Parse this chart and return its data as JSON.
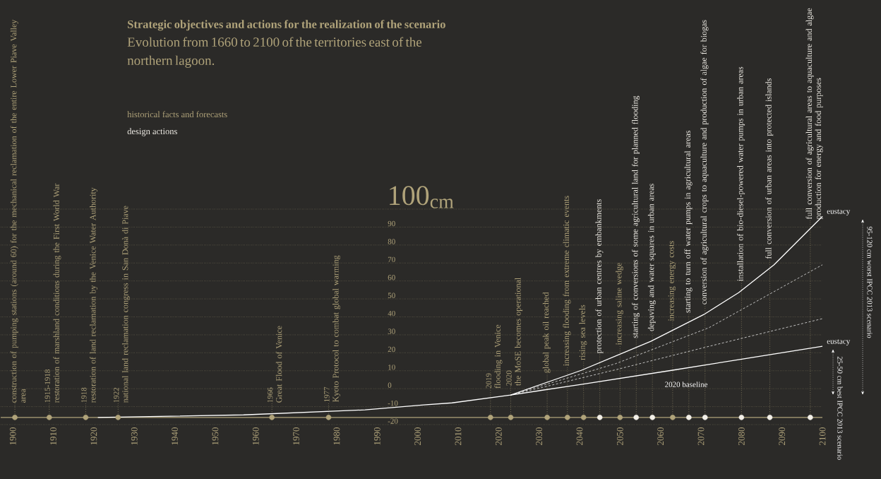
{
  "chart_data": {
    "type": "line",
    "title": "Strategic objectives and actions for the realization of the scenario",
    "subtitle": "Evolution from 1660 to 2100 of the territories east of the northern lagoon.",
    "ylabel": "100$_{cm}$",
    "xlim": [
      1897,
      2100
    ],
    "ylim": [
      -20,
      100
    ],
    "xticks": [
      1900,
      1910,
      1920,
      1930,
      1940,
      1950,
      1960,
      1970,
      1980,
      1990,
      2000,
      2010,
      2020,
      2030,
      2040,
      2050,
      2060,
      2070,
      2080,
      2090,
      2100
    ],
    "yticks": [
      -20,
      -10,
      0,
      10,
      20,
      30,
      40,
      50,
      60,
      70,
      80,
      90,
      {
        "value": 100,
        "label": null
      }
    ],
    "grid": "y",
    "legend": "top left",
    "series": [
      {
        "line_style": "solid",
        "color": "#ffffff",
        "x": [
          1921,
          1957,
          1987,
          2001.5,
          2008.5,
          2023,
          2040.4,
          2057.6,
          2070.7,
          2079.3,
          2088,
          2100
        ],
        "values": [
          -16,
          -14.6,
          -11.8,
          -9,
          -7.9,
          -3.5,
          10.2,
          26.4,
          41.3,
          53.5,
          68.9,
          96
        ]
      },
      {
        "line_style": "dashed",
        "color": "#ffffff",
        "x": [
          2023,
          2049,
          2072,
          2100
        ],
        "values": [
          -3.5,
          14,
          34,
          69
        ]
      },
      {
        "line_style": "dashed",
        "color": "#ffffff",
        "x": [
          2023,
          2049,
          2072,
          2100
        ],
        "values": [
          -3.5,
          10.6,
          23.6,
          39
        ]
      },
      {
        "line_style": "solid",
        "color": "#ffffff",
        "x": [
          2023,
          2040.4,
          2062.7,
          2100
        ],
        "values": [
          -3.5,
          2.4,
          10.2,
          23.6
        ]
      },
      {
        "type": "scatter",
        "color": "#b0a37a",
        "name": "historical facts and forecasts",
        "x": [
          1900.5,
          1909,
          1918,
          1926,
          1964,
          1978,
          2018,
          2023,
          2032,
          2037,
          2041,
          2050,
          2063
        ],
        "values": [
          -16,
          -16,
          -16,
          -16,
          -16,
          -16,
          -16,
          -16,
          -16,
          -16,
          -16,
          -16,
          -16
        ]
      },
      {
        "type": "scatter",
        "color": "#f2efe8",
        "name": "design actions",
        "x": [
          2045,
          2054,
          2058,
          2067,
          2071,
          2080,
          2087,
          2097
        ],
        "values": [
          -16,
          -16,
          -16,
          -16,
          -16,
          -16,
          -16,
          -16
        ]
      }
    ],
    "ref_lines": [
      {
        "axis": "y",
        "value": -16,
        "color": "#b0a37a",
        "line_style": "solid"
      }
    ],
    "annotations": [
      {
        "text": "construction of pumping stations (around 60) for the mechanical reclamation of the entire Lower Piave Valley area",
        "x": 1900.5,
        "y": -16
      },
      {
        "text": "1915-1918",
        "x": 1909,
        "y": -16
      },
      {
        "text": "restoration of marshland conditions during the First World War",
        "x": 1909,
        "y": -16
      },
      {
        "text": "1918",
        "x": 1918,
        "y": -16
      },
      {
        "text": "restoration of land reclamation by the Venice Water Authority",
        "x": 1918,
        "y": -16
      },
      {
        "text": "1922",
        "x": 1926,
        "y": -16
      },
      {
        "text": "national land reclamation congress in San Donà di Piave",
        "x": 1926,
        "y": -16
      },
      {
        "text": "1966",
        "x": 1964,
        "y": -16
      },
      {
        "text": "Great Flood of Venice",
        "x": 1964,
        "y": -16
      },
      {
        "text": "1977",
        "x": 1978,
        "y": -16
      },
      {
        "text": "Kyoto Protocol to combat global warming",
        "x": 1978,
        "y": -16
      },
      {
        "text": "2019",
        "x": 2018,
        "y": -16
      },
      {
        "text": "flooding in Venice",
        "x": 2018,
        "y": -16
      },
      {
        "text": "2020",
        "x": 2023,
        "y": -16
      },
      {
        "text": "the MoSE becomes operational",
        "x": 2023,
        "y": -16
      },
      {
        "text": "global peak oil reached",
        "x": 2032,
        "y": -16
      },
      {
        "text": "increasing flooding from extreme climatic events",
        "x": 2037,
        "y": -16
      },
      {
        "text": "rising sea levels",
        "x": 2041,
        "y": -16
      },
      {
        "text": "protection of urban centres by embankments",
        "x": 2045,
        "y": -16
      },
      {
        "text": "increasing saline wedge",
        "x": 2050,
        "y": -16
      },
      {
        "text": "starting of conversions of some agricultural land for planned flooding",
        "x": 2054,
        "y": -16
      },
      {
        "text": "depaving and water squares in urban areas",
        "x": 2058,
        "y": -16
      },
      {
        "text": "increasing energy costs",
        "x": 2063,
        "y": -16
      },
      {
        "text": "starting to turn off water pumps in agricultural areas",
        "x": 2067,
        "y": -16
      },
      {
        "text": "conversion of agricultural crops to aquaculture and production of algae for biogas",
        "x": 2071,
        "y": -16
      },
      {
        "text": "installation of bio-diesel-powered water pumps in urban areas",
        "x": 2080,
        "y": -16
      },
      {
        "text": "full conversion of urban areas into protected islands",
        "x": 2087,
        "y": -16
      },
      {
        "text": "full conversion of agricultural areas to aquaculture and algae production for energy and food purposes",
        "x": 2097,
        "y": -16
      },
      {
        "text": "eustacy",
        "x": 2100,
        "y": 96
      },
      {
        "text": "eustacy",
        "x": 2100,
        "y": 23.6
      },
      "95-120 cm worst IPCC 2013 scenario",
      "25-50 cm best IPCC 2013 scenario",
      "2020 baseline"
    ]
  }
}
